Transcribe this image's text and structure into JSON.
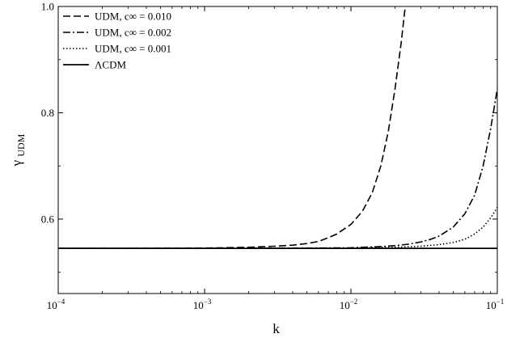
{
  "chart_data": {
    "type": "line",
    "xlabel": "k",
    "ylabel_main": "γ",
    "ylabel_sub": "UDM",
    "xscale": "log",
    "xlim": [
      0.0001,
      0.1
    ],
    "ylim": [
      0.46,
      1.0
    ],
    "grid": false,
    "legend_position": "top-left",
    "x_ticks": [
      {
        "value": 0.0001,
        "base": "10",
        "exp": "−4"
      },
      {
        "value": 0.001,
        "base": "10",
        "exp": "−3"
      },
      {
        "value": 0.01,
        "base": "10",
        "exp": "−2"
      },
      {
        "value": 0.1,
        "base": "10",
        "exp": "−1"
      }
    ],
    "y_ticks": [
      {
        "value": 0.6,
        "label": "0.6"
      },
      {
        "value": 0.8,
        "label": "0.8"
      },
      {
        "value": 1.0,
        "label": "1.0"
      }
    ],
    "y_minor_ticks": [
      0.5,
      0.7,
      0.9
    ],
    "series": [
      {
        "name": "UDM, c∞ = 0.010",
        "style": "dashed",
        "x": [
          0.0001,
          0.0003,
          0.001,
          0.002,
          0.003,
          0.004,
          0.005,
          0.006,
          0.007,
          0.008,
          0.01,
          0.012,
          0.014,
          0.016,
          0.018,
          0.02,
          0.022,
          0.0235
        ],
        "y": [
          0.545,
          0.545,
          0.5455,
          0.547,
          0.549,
          0.551,
          0.554,
          0.558,
          0.565,
          0.572,
          0.59,
          0.615,
          0.65,
          0.7,
          0.765,
          0.845,
          0.93,
          1.0
        ]
      },
      {
        "name": "UDM, c∞ = 0.002",
        "style": "dashdot",
        "x": [
          0.0001,
          0.001,
          0.005,
          0.01,
          0.015,
          0.02,
          0.025,
          0.03,
          0.035,
          0.04,
          0.05,
          0.06,
          0.07,
          0.08,
          0.09,
          0.1
        ],
        "y": [
          0.545,
          0.545,
          0.5455,
          0.546,
          0.548,
          0.55,
          0.553,
          0.557,
          0.562,
          0.568,
          0.585,
          0.61,
          0.645,
          0.7,
          0.77,
          0.845
        ]
      },
      {
        "name": "UDM, c∞ = 0.001",
        "style": "dotted",
        "x": [
          0.0001,
          0.001,
          0.005,
          0.01,
          0.02,
          0.03,
          0.04,
          0.05,
          0.06,
          0.07,
          0.08,
          0.09,
          0.1
        ],
        "y": [
          0.545,
          0.545,
          0.545,
          0.5455,
          0.547,
          0.549,
          0.552,
          0.556,
          0.562,
          0.572,
          0.585,
          0.602,
          0.622
        ]
      },
      {
        "name": "ΛCDM",
        "style": "solid",
        "x": [
          0.0001,
          0.1
        ],
        "y": [
          0.545,
          0.545
        ]
      }
    ]
  }
}
